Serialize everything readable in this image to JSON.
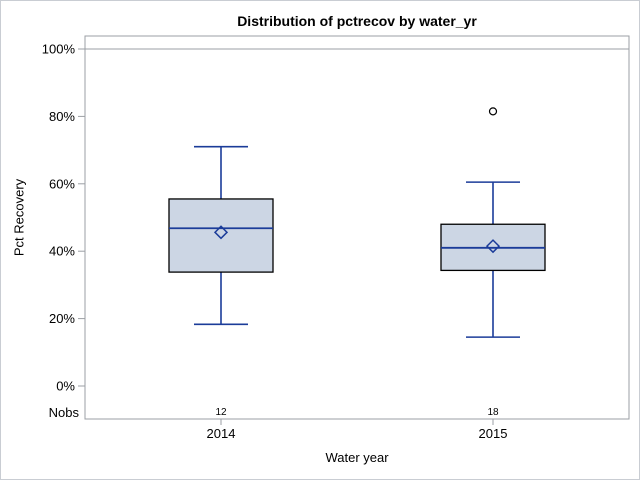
{
  "window": {
    "background": "#ffffff",
    "border_color": "#c9cdd3"
  },
  "chart_data": {
    "type": "boxplot",
    "title": "Distribution of pctrecov by water_yr",
    "xlabel": "Water year",
    "ylabel": "Pct Recovery",
    "ylim": [
      0,
      100
    ],
    "y_tick_step": 20,
    "y_tick_suffix": "%",
    "y_tick_labels": [
      "0%",
      "20%",
      "40%",
      "60%",
      "80%",
      "100%"
    ],
    "refline_y": 100,
    "grid": "off",
    "legend": "none",
    "nobs_label": "Nobs",
    "categories": [
      "2014",
      "2015"
    ],
    "series": [
      {
        "category": "2014",
        "nobs": "12",
        "whisker_low": 18.3,
        "q1": 33.8,
        "median": 46.8,
        "q3": 55.5,
        "whisker_high": 71.0,
        "mean": 45.6,
        "outliers": []
      },
      {
        "category": "2015",
        "nobs": "18",
        "whisker_low": 14.5,
        "q1": 34.3,
        "median": 41.0,
        "q3": 48.0,
        "whisker_high": 60.5,
        "mean": 41.5,
        "outliers": [
          81.5
        ]
      }
    ],
    "colors": {
      "box_fill": "#ccd6e4",
      "box_border": "#000000",
      "line": "#1b3c99",
      "axis": "#9b9fa4",
      "text": "#000000",
      "outlier": "#000000"
    }
  }
}
